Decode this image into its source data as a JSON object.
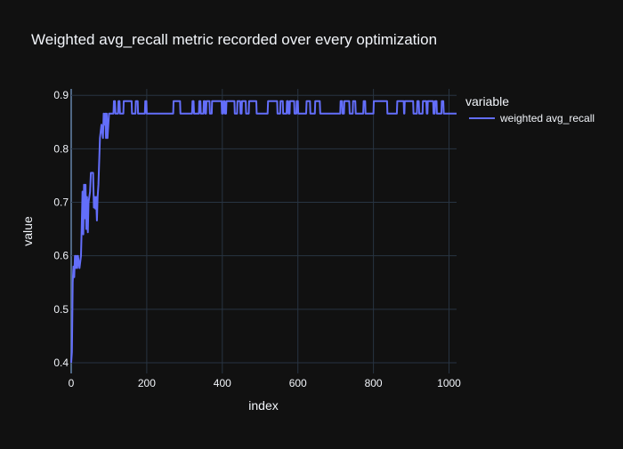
{
  "chart_data": {
    "type": "line",
    "title": "Weighted avg_recall metric recorded over every optimization",
    "xlabel": "index",
    "ylabel": "value",
    "xlim": [
      0,
      1020
    ],
    "ylim": [
      0.38,
      0.912
    ],
    "x_ticks": [
      0,
      200,
      400,
      600,
      800,
      1000
    ],
    "y_ticks": [
      0.4,
      0.5,
      0.6,
      0.7,
      0.8,
      0.9
    ],
    "x_tick_labels": [
      "0",
      "200",
      "400",
      "600",
      "800",
      "1000"
    ],
    "y_tick_labels": [
      "0.4",
      "0.5",
      "0.6",
      "0.7",
      "0.8",
      "0.9"
    ],
    "grid": true,
    "legend": {
      "title": "variable",
      "position": "top-right"
    },
    "series": [
      {
        "name": "weighted avg_recall",
        "color": "#636efa",
        "points": [
          [
            0,
            0.4
          ],
          [
            2,
            0.42
          ],
          [
            4,
            0.55
          ],
          [
            6,
            0.58
          ],
          [
            8,
            0.56
          ],
          [
            10,
            0.6
          ],
          [
            12,
            0.577
          ],
          [
            14,
            0.6
          ],
          [
            16,
            0.577
          ],
          [
            18,
            0.6
          ],
          [
            22,
            0.577
          ],
          [
            26,
            0.6
          ],
          [
            28,
            0.66
          ],
          [
            30,
            0.72
          ],
          [
            32,
            0.64
          ],
          [
            34,
            0.733
          ],
          [
            36,
            0.67
          ],
          [
            38,
            0.733
          ],
          [
            40,
            0.65
          ],
          [
            42,
            0.71
          ],
          [
            44,
            0.644
          ],
          [
            46,
            0.7
          ],
          [
            50,
            0.72
          ],
          [
            52,
            0.755
          ],
          [
            58,
            0.755
          ],
          [
            60,
            0.69
          ],
          [
            62,
            0.71
          ],
          [
            64,
            0.688
          ],
          [
            66,
            0.71
          ],
          [
            68,
            0.666
          ],
          [
            70,
            0.71
          ],
          [
            72,
            0.733
          ],
          [
            76,
            0.82
          ],
          [
            80,
            0.845
          ],
          [
            84,
            0.82
          ],
          [
            86,
            0.866
          ],
          [
            88,
            0.845
          ],
          [
            90,
            0.866
          ],
          [
            92,
            0.82
          ],
          [
            94,
            0.866
          ],
          [
            96,
            0.82
          ],
          [
            100,
            0.866
          ],
          [
            112,
            0.866
          ],
          [
            113,
            0.889
          ],
          [
            116,
            0.889
          ],
          [
            117,
            0.866
          ],
          [
            124,
            0.866
          ],
          [
            125,
            0.889
          ],
          [
            128,
            0.889
          ],
          [
            129,
            0.866
          ],
          [
            138,
            0.866
          ],
          [
            139,
            0.889
          ],
          [
            160,
            0.889
          ],
          [
            161,
            0.866
          ],
          [
            170,
            0.866
          ],
          [
            171,
            0.889
          ],
          [
            176,
            0.889
          ],
          [
            177,
            0.866
          ],
          [
            195,
            0.866
          ],
          [
            196,
            0.889
          ],
          [
            199,
            0.889
          ],
          [
            200,
            0.866
          ],
          [
            270,
            0.866
          ],
          [
            271,
            0.889
          ],
          [
            288,
            0.889
          ],
          [
            289,
            0.866
          ],
          [
            320,
            0.866
          ],
          [
            321,
            0.889
          ],
          [
            324,
            0.889
          ],
          [
            325,
            0.866
          ],
          [
            338,
            0.866
          ],
          [
            339,
            0.889
          ],
          [
            342,
            0.889
          ],
          [
            343,
            0.866
          ],
          [
            350,
            0.866
          ],
          [
            351,
            0.889
          ],
          [
            354,
            0.889
          ],
          [
            355,
            0.866
          ],
          [
            357,
            0.866
          ],
          [
            358,
            0.889
          ],
          [
            366,
            0.889
          ],
          [
            367,
            0.866
          ],
          [
            372,
            0.866
          ],
          [
            373,
            0.889
          ],
          [
            398,
            0.889
          ],
          [
            399,
            0.866
          ],
          [
            402,
            0.866
          ],
          [
            403,
            0.889
          ],
          [
            406,
            0.889
          ],
          [
            407,
            0.866
          ],
          [
            410,
            0.866
          ],
          [
            411,
            0.889
          ],
          [
            432,
            0.889
          ],
          [
            433,
            0.866
          ],
          [
            439,
            0.866
          ],
          [
            440,
            0.889
          ],
          [
            447,
            0.889
          ],
          [
            448,
            0.866
          ],
          [
            451,
            0.866
          ],
          [
            452,
            0.889
          ],
          [
            462,
            0.889
          ],
          [
            463,
            0.866
          ],
          [
            470,
            0.866
          ],
          [
            471,
            0.889
          ],
          [
            490,
            0.889
          ],
          [
            491,
            0.866
          ],
          [
            520,
            0.866
          ],
          [
            521,
            0.889
          ],
          [
            545,
            0.889
          ],
          [
            546,
            0.866
          ],
          [
            553,
            0.866
          ],
          [
            554,
            0.889
          ],
          [
            560,
            0.889
          ],
          [
            561,
            0.866
          ],
          [
            570,
            0.866
          ],
          [
            571,
            0.889
          ],
          [
            574,
            0.889
          ],
          [
            575,
            0.866
          ],
          [
            578,
            0.866
          ],
          [
            579,
            0.889
          ],
          [
            590,
            0.889
          ],
          [
            591,
            0.866
          ],
          [
            596,
            0.866
          ],
          [
            597,
            0.889
          ],
          [
            600,
            0.889
          ],
          [
            601,
            0.866
          ],
          [
            622,
            0.866
          ],
          [
            623,
            0.889
          ],
          [
            632,
            0.889
          ],
          [
            633,
            0.866
          ],
          [
            645,
            0.866
          ],
          [
            646,
            0.889
          ],
          [
            658,
            0.889
          ],
          [
            659,
            0.866
          ],
          [
            712,
            0.866
          ],
          [
            713,
            0.889
          ],
          [
            717,
            0.889
          ],
          [
            718,
            0.866
          ],
          [
            722,
            0.866
          ],
          [
            723,
            0.889
          ],
          [
            736,
            0.889
          ],
          [
            737,
            0.866
          ],
          [
            745,
            0.866
          ],
          [
            746,
            0.889
          ],
          [
            752,
            0.889
          ],
          [
            753,
            0.866
          ],
          [
            773,
            0.866
          ],
          [
            774,
            0.889
          ],
          [
            778,
            0.889
          ],
          [
            779,
            0.866
          ],
          [
            800,
            0.866
          ],
          [
            801,
            0.889
          ],
          [
            836,
            0.889
          ],
          [
            837,
            0.866
          ],
          [
            862,
            0.866
          ],
          [
            863,
            0.889
          ],
          [
            880,
            0.889
          ],
          [
            881,
            0.866
          ],
          [
            882,
            0.866
          ],
          [
            883,
            0.889
          ],
          [
            905,
            0.889
          ],
          [
            906,
            0.866
          ],
          [
            915,
            0.866
          ],
          [
            916,
            0.889
          ],
          [
            920,
            0.889
          ],
          [
            921,
            0.866
          ],
          [
            930,
            0.866
          ],
          [
            931,
            0.889
          ],
          [
            940,
            0.889
          ],
          [
            941,
            0.866
          ],
          [
            943,
            0.866
          ],
          [
            944,
            0.889
          ],
          [
            958,
            0.889
          ],
          [
            959,
            0.866
          ],
          [
            962,
            0.866
          ],
          [
            963,
            0.889
          ],
          [
            967,
            0.889
          ],
          [
            968,
            0.866
          ],
          [
            980,
            0.866
          ],
          [
            981,
            0.889
          ],
          [
            985,
            0.889
          ],
          [
            986,
            0.866
          ],
          [
            1020,
            0.866
          ]
        ]
      }
    ]
  }
}
